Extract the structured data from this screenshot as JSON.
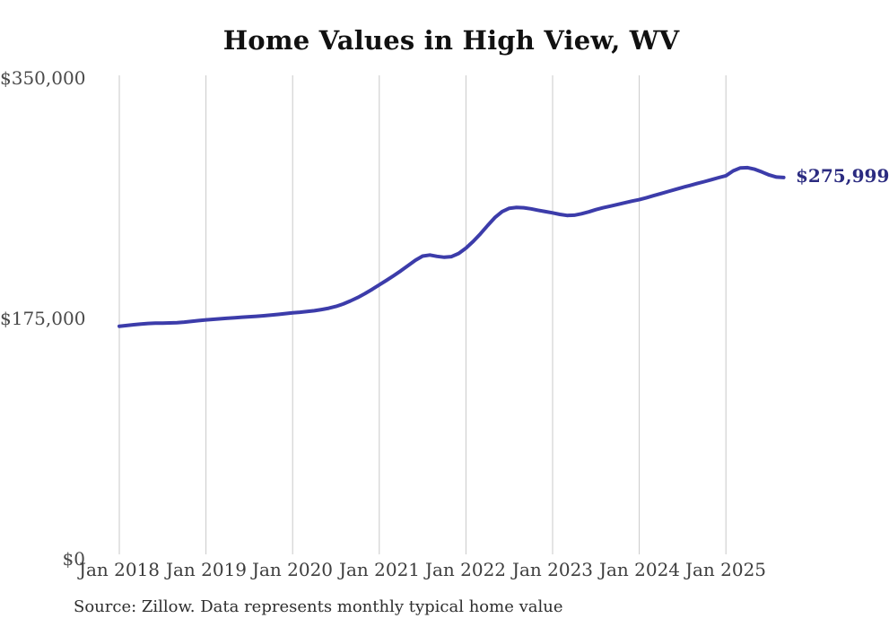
{
  "chart_data": {
    "type": "line",
    "title": "Home Values in High View, WV",
    "source": "Source: Zillow. Data represents monthly typical home value",
    "end_label": "$275,999",
    "line_color": "#3c3caa",
    "end_label_color": "#2b2b80",
    "gridline_color": "#c9c9c9",
    "grid": "vertical-only",
    "legend": "none",
    "ylim": [
      0,
      350000
    ],
    "y_ticks": [
      {
        "label": "$0",
        "value": 0
      },
      {
        "label": "$175,000",
        "value": 175000
      },
      {
        "label": "$350,000",
        "value": 350000
      }
    ],
    "x_ticks": [
      "Jan 2018",
      "Jan 2019",
      "Jan 2020",
      "Jan 2021",
      "Jan 2022",
      "Jan 2023",
      "Jan 2024",
      "Jan 2025"
    ],
    "x": [
      "2018-01",
      "2018-02",
      "2018-03",
      "2018-04",
      "2018-05",
      "2018-06",
      "2018-07",
      "2018-08",
      "2018-09",
      "2018-10",
      "2018-11",
      "2018-12",
      "2019-01",
      "2019-02",
      "2019-03",
      "2019-04",
      "2019-05",
      "2019-06",
      "2019-07",
      "2019-08",
      "2019-09",
      "2019-10",
      "2019-11",
      "2019-12",
      "2020-01",
      "2020-02",
      "2020-03",
      "2020-04",
      "2020-05",
      "2020-06",
      "2020-07",
      "2020-08",
      "2020-09",
      "2020-10",
      "2020-11",
      "2020-12",
      "2021-01",
      "2021-02",
      "2021-03",
      "2021-04",
      "2021-05",
      "2021-06",
      "2021-07",
      "2021-08",
      "2021-09",
      "2021-10",
      "2021-11",
      "2021-12",
      "2022-01",
      "2022-02",
      "2022-03",
      "2022-04",
      "2022-05",
      "2022-06",
      "2022-07",
      "2022-08",
      "2022-09",
      "2022-10",
      "2022-11",
      "2022-12",
      "2023-01",
      "2023-02",
      "2023-03",
      "2023-04",
      "2023-05",
      "2023-06",
      "2023-07",
      "2023-08",
      "2023-09",
      "2023-10",
      "2023-11",
      "2023-12",
      "2024-01",
      "2024-02",
      "2024-03",
      "2024-04",
      "2024-05",
      "2024-06",
      "2024-07",
      "2024-08",
      "2024-09",
      "2024-10",
      "2024-11",
      "2024-12",
      "2025-01",
      "2025-02",
      "2025-03",
      "2025-04",
      "2025-05",
      "2025-06",
      "2025-07",
      "2025-08",
      "2025-09"
    ],
    "series": [
      {
        "name": "Typical home value",
        "values": [
          167800,
          168300,
          168900,
          169400,
          169800,
          170000,
          170100,
          170200,
          170400,
          170800,
          171300,
          171900,
          172400,
          172800,
          173200,
          173600,
          174000,
          174400,
          174700,
          175000,
          175400,
          175900,
          176400,
          177000,
          177600,
          178000,
          178500,
          179100,
          179900,
          180900,
          182200,
          184000,
          186200,
          188700,
          191500,
          194600,
          197900,
          201200,
          204600,
          208200,
          212000,
          215800,
          218800,
          219600,
          218600,
          218000,
          218400,
          220800,
          224600,
          229500,
          235000,
          241000,
          246800,
          251200,
          253600,
          254200,
          254000,
          253200,
          252200,
          251200,
          250300,
          249200,
          248400,
          248600,
          249600,
          251000,
          252600,
          254000,
          255200,
          256400,
          257600,
          258800,
          259900,
          261300,
          262800,
          264300,
          265800,
          267300,
          268800,
          270200,
          271600,
          273000,
          274400,
          275900,
          277300,
          280800,
          283000,
          283200,
          282000,
          280000,
          277800,
          276300,
          275999
        ]
      }
    ]
  }
}
